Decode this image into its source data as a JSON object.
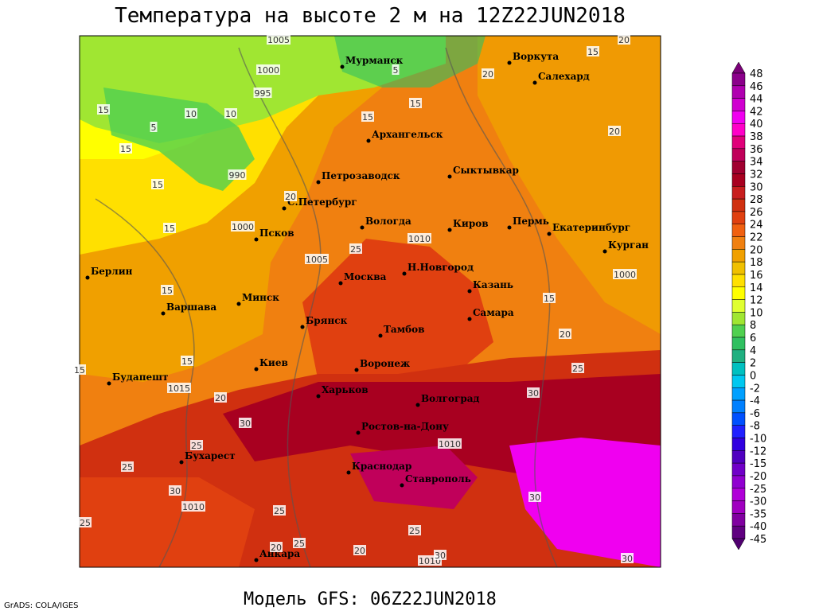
{
  "title": "Температура на высоте 2 м на 12Z22JUN2018",
  "model": "Модель GFS: 06Z22JUN2018",
  "credit": "GrADS: COLA/IGES",
  "cities": [
    "Мурманск",
    "Воркута",
    "Салехард",
    "Архангельск",
    "Петрозаводск",
    "Сыктывкар",
    "С.Петербург",
    "Вологда",
    "Киров",
    "Пермь",
    "Екатеринбург",
    "Курган",
    "Псков",
    "Н.Новгород",
    "Казань",
    "Берлин",
    "Москва",
    "Минск",
    "Варшава",
    "Самара",
    "Брянск",
    "Тамбов",
    "Киев",
    "Воронеж",
    "Будапешт",
    "Харьков",
    "Волгоград",
    "Ростов-на-Дону",
    "Бухарест",
    "Краснодар",
    "Ставрополь",
    "Анкара"
  ],
  "contour_labels": [
    "1005",
    "1000",
    "995",
    "990",
    "1000",
    "1005",
    "1010",
    "1000",
    "1015",
    "1010",
    "1010",
    "1010",
    "5",
    "15",
    "10",
    "10",
    "5",
    "15",
    "15",
    "15",
    "20",
    "25",
    "15",
    "15",
    "15",
    "20",
    "25",
    "30",
    "30",
    "25",
    "20",
    "15",
    "20",
    "20",
    "20",
    "15",
    "15",
    "15",
    "25",
    "30",
    "25",
    "25",
    "20",
    "25",
    "20",
    "30",
    "30",
    "25",
    "30"
  ],
  "colorbar": {
    "levels": [
      48,
      46,
      44,
      42,
      40,
      38,
      36,
      34,
      32,
      30,
      28,
      26,
      24,
      22,
      20,
      18,
      16,
      14,
      12,
      10,
      8,
      6,
      4,
      2,
      0,
      -2,
      -4,
      -6,
      -8,
      -10,
      -12,
      -15,
      -20,
      -25,
      -30,
      -35,
      -40,
      -45
    ],
    "colors": [
      "#7a0078",
      "#8b008b",
      "#b000b0",
      "#d000d0",
      "#f000f0",
      "#ff00c8",
      "#e0007a",
      "#c0005a",
      "#a00030",
      "#a80020",
      "#c81e1e",
      "#d03010",
      "#e04010",
      "#f06010",
      "#f08010",
      "#f0a000",
      "#f0c000",
      "#ffe000",
      "#ffff00",
      "#e0ff30",
      "#a0e632",
      "#50d050",
      "#30c060",
      "#20b080",
      "#00c0c0",
      "#00c8f0",
      "#00a0ff",
      "#0080ff",
      "#0050ff",
      "#2020ff",
      "#3000e0",
      "#5000c0",
      "#7000c8",
      "#9000d0",
      "#b000d8",
      "#a000c0",
      "#8000a0",
      "#600080",
      "#500070"
    ]
  }
}
